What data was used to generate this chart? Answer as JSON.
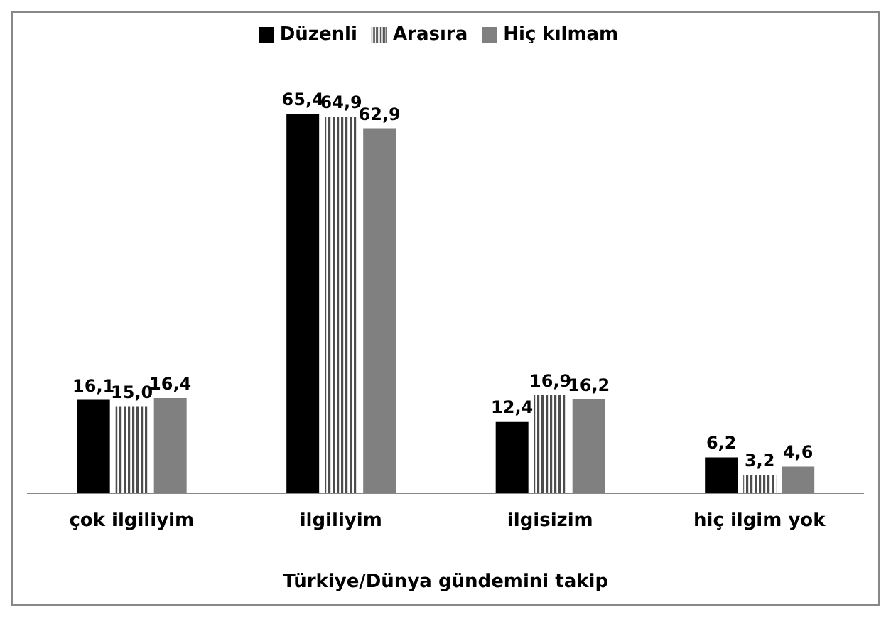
{
  "chart_data": {
    "type": "bar",
    "xlabel": "Türkiye/Dünya gündemini takip",
    "categories": [
      "çok ilgiliyim",
      "ilgiliyim",
      "ilgisizim",
      "hiç ilgim yok"
    ],
    "series": [
      {
        "name": "Düzenli",
        "color": "#000000",
        "values": [
          16.1,
          65.4,
          12.4,
          6.2
        ],
        "value_labels": [
          "16,1",
          "65,4",
          "12,4",
          "6,2"
        ]
      },
      {
        "name": "Arasıra",
        "color": "#4d4d4d",
        "values": [
          15.0,
          64.9,
          16.9,
          3.2
        ],
        "value_labels": [
          "15,0",
          "64,9",
          "16,9",
          "3,2"
        ]
      },
      {
        "name": "Hiç kılmam",
        "color": "#808080",
        "values": [
          16.4,
          62.9,
          16.2,
          4.6
        ],
        "value_labels": [
          "16,4",
          "62,9",
          "16,2",
          "4,6"
        ]
      }
    ],
    "legend": "top"
  }
}
